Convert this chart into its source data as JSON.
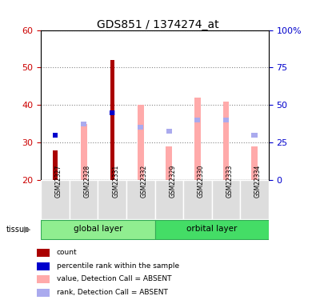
{
  "title": "GDS851 / 1374274_at",
  "samples": [
    "GSM22327",
    "GSM22328",
    "GSM22331",
    "GSM22332",
    "GSM22329",
    "GSM22330",
    "GSM22333",
    "GSM22334"
  ],
  "ylim_left": [
    20,
    60
  ],
  "ylim_right": [
    0,
    100
  ],
  "yticks_left": [
    20,
    30,
    40,
    50,
    60
  ],
  "yticks_right": [
    0,
    25,
    50,
    75,
    100
  ],
  "ytick_labels_right": [
    "0",
    "25",
    "50",
    "75",
    "100%"
  ],
  "left_axis_color": "#cc0000",
  "right_axis_color": "#0000cc",
  "count_color": "#aa0000",
  "percentile_color": "#0000cc",
  "value_absent_color": "#ffaaaa",
  "rank_absent_color": "#aaaaee",
  "count_values": [
    28,
    null,
    52,
    null,
    null,
    null,
    null,
    null
  ],
  "percentile_values": [
    32,
    null,
    38,
    null,
    null,
    null,
    null,
    null
  ],
  "value_absent_bottom": [
    20,
    20,
    20,
    20,
    20,
    20,
    20,
    20
  ],
  "value_absent_top": [
    null,
    35,
    null,
    40,
    29,
    42,
    41,
    29
  ],
  "rank_absent_values": [
    null,
    35,
    38,
    34,
    33,
    36,
    36,
    32
  ],
  "legend_items": [
    {
      "color": "#aa0000",
      "label": "count"
    },
    {
      "color": "#0000cc",
      "label": "percentile rank within the sample"
    },
    {
      "color": "#ffaaaa",
      "label": "value, Detection Call = ABSENT"
    },
    {
      "color": "#aaaaee",
      "label": "rank, Detection Call = ABSENT"
    }
  ],
  "grid_color": "#888888",
  "global_layer_color": "#90ee90",
  "orbital_layer_color": "#44dd66"
}
